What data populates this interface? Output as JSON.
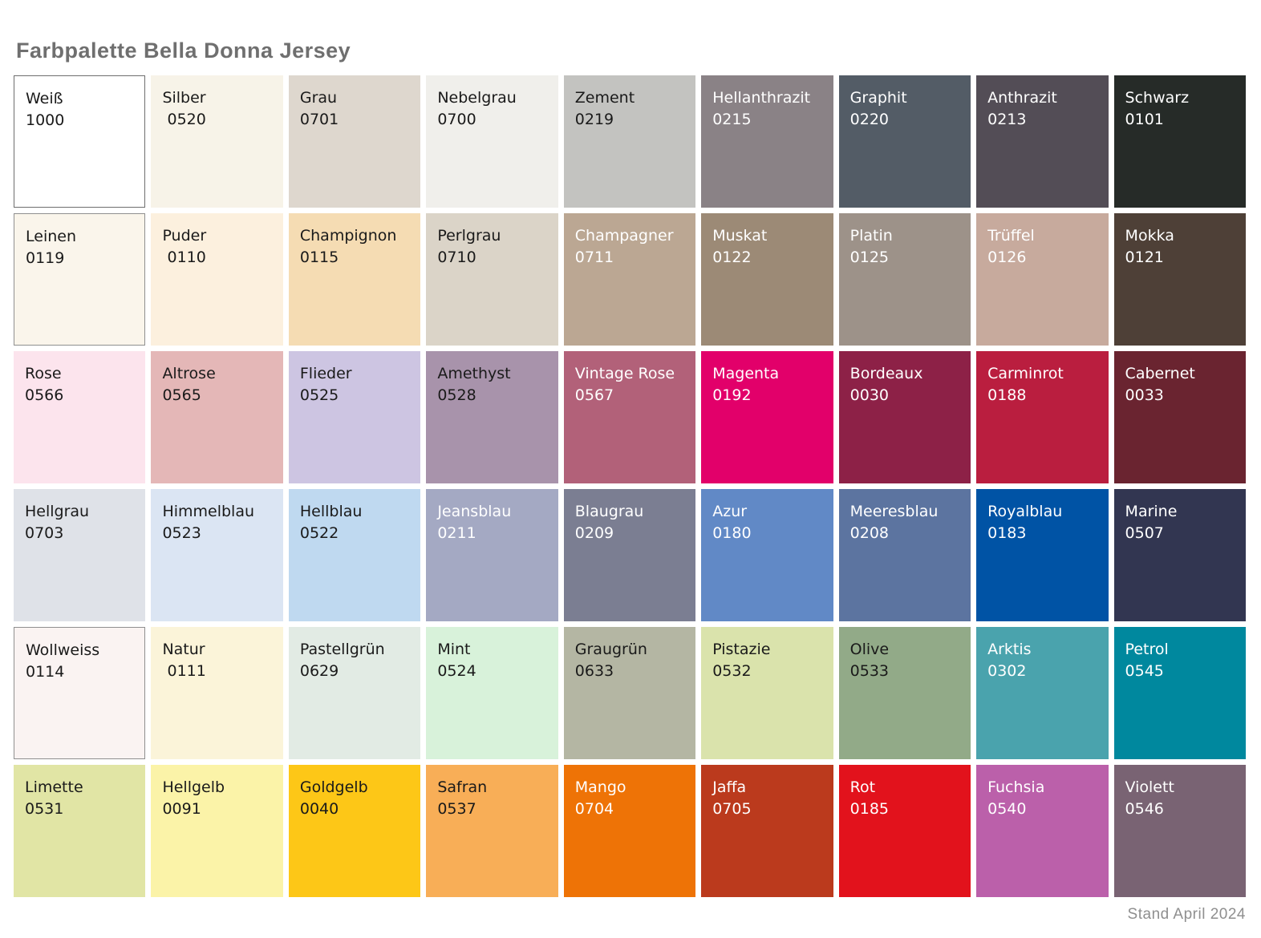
{
  "title": "Farbpalette Bella Donna Jersey",
  "footer": "Stand April 2024",
  "palette": {
    "columns": 9,
    "rows": 6,
    "text_dark": "#1a1a1a",
    "text_light": "#ffffff",
    "swatches": [
      {
        "name": "Weiß",
        "code": "1000",
        "bg": "#ffffff",
        "text": "dark",
        "border": "#6e6e6e"
      },
      {
        "name": "Silber",
        "code": " 0520",
        "bg": "#f7f3e8",
        "text": "dark"
      },
      {
        "name": "Grau",
        "code": "0701",
        "bg": "#ded7ce",
        "text": "dark"
      },
      {
        "name": "Nebelgrau",
        "code": "0700",
        "bg": "#f0efeb",
        "text": "dark"
      },
      {
        "name": "Zement",
        "code": "0219",
        "bg": "#c3c3c0",
        "text": "dark"
      },
      {
        "name": "Hellanthrazit",
        "code": "0215",
        "bg": "#8a8286",
        "text": "light"
      },
      {
        "name": "Graphit",
        "code": "0220",
        "bg": "#535c66",
        "text": "light"
      },
      {
        "name": "Anthrazit",
        "code": "0213",
        "bg": "#534d56",
        "text": "light"
      },
      {
        "name": "Schwarz",
        "code": "0101",
        "bg": "#262b28",
        "text": "light"
      },
      {
        "name": "Leinen",
        "code": "0119",
        "bg": "#faf5eb",
        "text": "dark",
        "border": "#8f8f8f"
      },
      {
        "name": "Puder",
        "code": " 0110",
        "bg": "#fcf0de",
        "text": "dark"
      },
      {
        "name": "Champignon",
        "code": "0115",
        "bg": "#f5dcb3",
        "text": "dark"
      },
      {
        "name": "Perlgrau",
        "code": "0710",
        "bg": "#dbd4c8",
        "text": "dark"
      },
      {
        "name": "Champagner",
        "code": "0711",
        "bg": "#bba793",
        "text": "light"
      },
      {
        "name": "Muskat",
        "code": "0122",
        "bg": "#9c8a76",
        "text": "light"
      },
      {
        "name": "Platin",
        "code": "0125",
        "bg": "#9d9289",
        "text": "light"
      },
      {
        "name": "Trüffel",
        "code": "0126",
        "bg": "#c7aa9d",
        "text": "light"
      },
      {
        "name": "Mokka",
        "code": "0121",
        "bg": "#4e4037",
        "text": "light"
      },
      {
        "name": "Rose",
        "code": "0566",
        "bg": "#fce4ed",
        "text": "dark"
      },
      {
        "name": "Altrose",
        "code": "0565",
        "bg": "#e4b7b7",
        "text": "dark"
      },
      {
        "name": "Flieder",
        "code": "0525",
        "bg": "#cdc5e2",
        "text": "dark"
      },
      {
        "name": "Amethyst",
        "code": "0528",
        "bg": "#a893ab",
        "text": "dark"
      },
      {
        "name": "Vintage Rose",
        "code": "0567",
        "bg": "#b26179",
        "text": "light"
      },
      {
        "name": "Magenta",
        "code": "0192",
        "bg": "#e2006a",
        "text": "light"
      },
      {
        "name": "Bordeaux",
        "code": "0030",
        "bg": "#8d2147",
        "text": "light"
      },
      {
        "name": "Carminrot",
        "code": "0188",
        "bg": "#ba1e3f",
        "text": "light"
      },
      {
        "name": "Cabernet",
        "code": "0033",
        "bg": "#6a2430",
        "text": "light"
      },
      {
        "name": "Hellgrau",
        "code": "0703",
        "bg": "#dfe2e8",
        "text": "dark"
      },
      {
        "name": "Himmelblau",
        "code": "0523",
        "bg": "#dbe5f3",
        "text": "dark"
      },
      {
        "name": "Hellblau",
        "code": "0522",
        "bg": "#bfd9f0",
        "text": "dark"
      },
      {
        "name": "Jeansblau",
        "code": "0211",
        "bg": "#a4a9c3",
        "text": "light"
      },
      {
        "name": "Blaugrau",
        "code": "0209",
        "bg": "#7b7e92",
        "text": "light"
      },
      {
        "name": "Azur",
        "code": "0180",
        "bg": "#6189c6",
        "text": "light"
      },
      {
        "name": "Meeresblau",
        "code": "0208",
        "bg": "#5c74a0",
        "text": "light"
      },
      {
        "name": "Royalblau",
        "code": "0183",
        "bg": "#0053a5",
        "text": "light"
      },
      {
        "name": "Marine",
        "code": "0507",
        "bg": "#323651",
        "text": "light"
      },
      {
        "name": "Wollweiss",
        "code": "0114",
        "bg": "#faf3f2",
        "text": "dark",
        "border": "#8f8f8f"
      },
      {
        "name": "Natur",
        "code": " 0111",
        "bg": "#fbf4d9",
        "text": "dark"
      },
      {
        "name": "Pastellgrün",
        "code": "0629",
        "bg": "#e2ebe4",
        "text": "dark"
      },
      {
        "name": "Mint",
        "code": "0524",
        "bg": "#d8f2da",
        "text": "dark"
      },
      {
        "name": "Graugrün",
        "code": "0633",
        "bg": "#b4b6a3",
        "text": "dark"
      },
      {
        "name": "Pistazie",
        "code": "0532",
        "bg": "#dae3ac",
        "text": "dark"
      },
      {
        "name": "Olive",
        "code": "0533",
        "bg": "#92aa88",
        "text": "dark"
      },
      {
        "name": "Arktis",
        "code": "0302",
        "bg": "#4aa3ad",
        "text": "light"
      },
      {
        "name": "Petrol",
        "code": "0545",
        "bg": "#00889e",
        "text": "light"
      },
      {
        "name": "Limette",
        "code": "0531",
        "bg": "#e1e5a5",
        "text": "dark"
      },
      {
        "name": "Hellgelb",
        "code": "0091",
        "bg": "#fbf3a8",
        "text": "dark"
      },
      {
        "name": "Goldgelb",
        "code": "0040",
        "bg": "#fdc717",
        "text": "dark"
      },
      {
        "name": "Safran",
        "code": "0537",
        "bg": "#f8ae57",
        "text": "dark"
      },
      {
        "name": "Mango",
        "code": "0704",
        "bg": "#ee7306",
        "text": "light"
      },
      {
        "name": "Jaffa",
        "code": "0705",
        "bg": "#bb3a1d",
        "text": "light"
      },
      {
        "name": "Rot",
        "code": "0185",
        "bg": "#e2121c",
        "text": "light"
      },
      {
        "name": "Fuchsia",
        "code": "0540",
        "bg": "#bb60aa",
        "text": "light"
      },
      {
        "name": "Violett",
        "code": "0546",
        "bg": "#796373",
        "text": "light"
      }
    ]
  }
}
